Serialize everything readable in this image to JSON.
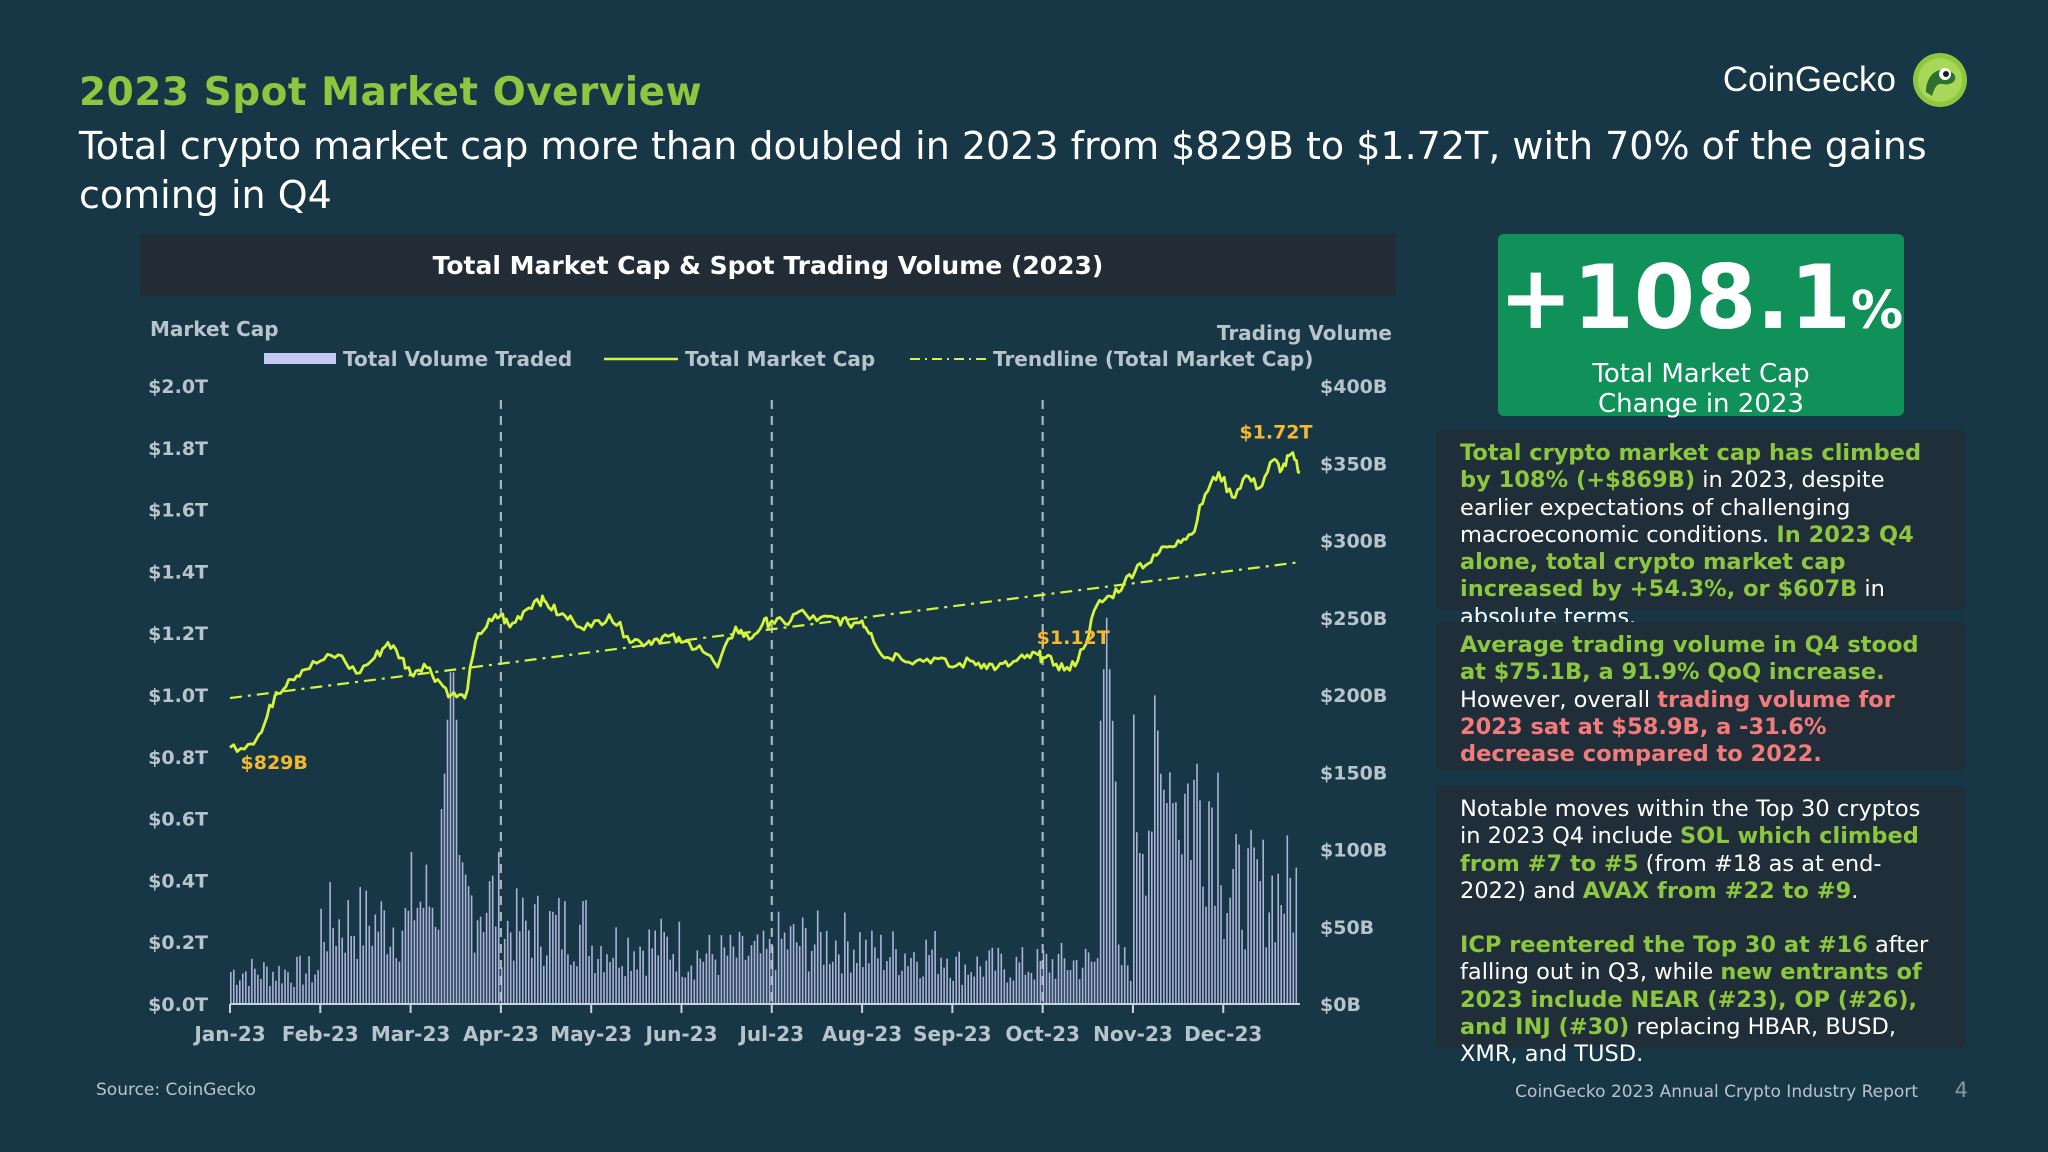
{
  "header": {
    "title": "2023 Spot Market Overview",
    "subtitle": "Total crypto market cap more than doubled in 2023 from $829B to $1.72T, with 70% of the gains coming in Q4"
  },
  "brand": {
    "name": "CoinGecko",
    "logo_icon": "gecko-logo-icon"
  },
  "chart_data": {
    "type": "bar+line",
    "title": "Total Market Cap & Spot Trading Volume (2023)",
    "y_left_label": "Market Cap",
    "y_right_label": "Trading Volume",
    "y_left_ticks": [
      "$2.0T",
      "$1.8T",
      "$1.6T",
      "$1.4T",
      "$1.2T",
      "$1.0T",
      "$0.8T",
      "$0.6T",
      "$0.4T",
      "$0.2T",
      "$0.0T"
    ],
    "y_right_ticks": [
      "$400B",
      "$350B",
      "$300B",
      "$250B",
      "$200B",
      "$150B",
      "$100B",
      "$50B",
      "$0B"
    ],
    "y_left_range_T": [
      0,
      2.0
    ],
    "y_right_range_B": [
      0,
      400
    ],
    "x_ticks": [
      "Jan-23",
      "Feb-23",
      "Mar-23",
      "Apr-23",
      "May-23",
      "Jun-23",
      "Jul-23",
      "Aug-23",
      "Sep-23",
      "Oct-23",
      "Nov-23",
      "Dec-23"
    ],
    "quarter_boundaries": [
      "Apr-23",
      "Jul-23",
      "Oct-23"
    ],
    "legend": {
      "volume": "Total Volume Traded",
      "market_cap": "Total Market Cap",
      "trendline": "Trendline (Total Market Cap)"
    },
    "annotations": [
      {
        "label": "$829B",
        "month_index": 0.05,
        "value_T": 0.829
      },
      {
        "label": "$1.12T",
        "month_index": 9.0,
        "value_T": 1.12
      },
      {
        "label": "$1.72T",
        "month_index": 11.6,
        "value_T": 1.72
      }
    ],
    "market_cap_T": {
      "x_month_index": [
        0,
        0.2,
        0.35,
        0.5,
        0.65,
        0.8,
        1.0,
        1.2,
        1.4,
        1.6,
        1.75,
        1.9,
        2.0,
        2.15,
        2.3,
        2.45,
        2.6,
        2.75,
        2.9,
        3.0,
        3.1,
        3.25,
        3.4,
        3.5,
        3.65,
        3.8,
        4.0,
        4.2,
        4.4,
        4.55,
        4.7,
        4.85,
        5.0,
        5.2,
        5.4,
        5.6,
        5.75,
        5.9,
        6.0,
        6.15,
        6.3,
        6.5,
        6.7,
        6.85,
        7.0,
        7.1,
        7.25,
        7.4,
        7.6,
        7.8,
        8.0,
        8.2,
        8.35,
        8.5,
        8.65,
        8.8,
        8.95,
        9.0,
        9.15,
        9.3,
        9.45,
        9.6,
        9.75,
        9.9,
        10.05,
        10.2,
        10.35,
        10.5,
        10.65,
        10.8,
        10.95,
        11.1,
        11.25,
        11.4,
        11.55,
        11.65,
        11.75,
        11.85
      ],
      "values": [
        0.83,
        0.84,
        0.88,
        1.0,
        1.05,
        1.08,
        1.11,
        1.13,
        1.07,
        1.12,
        1.17,
        1.12,
        1.07,
        1.1,
        1.05,
        1.0,
        0.99,
        1.2,
        1.24,
        1.26,
        1.22,
        1.27,
        1.31,
        1.3,
        1.26,
        1.24,
        1.22,
        1.26,
        1.19,
        1.17,
        1.18,
        1.19,
        1.17,
        1.16,
        1.09,
        1.22,
        1.18,
        1.23,
        1.24,
        1.23,
        1.27,
        1.24,
        1.25,
        1.23,
        1.24,
        1.2,
        1.12,
        1.13,
        1.11,
        1.12,
        1.09,
        1.11,
        1.1,
        1.09,
        1.1,
        1.12,
        1.13,
        1.12,
        1.1,
        1.08,
        1.15,
        1.29,
        1.32,
        1.36,
        1.42,
        1.43,
        1.48,
        1.5,
        1.52,
        1.65,
        1.72,
        1.64,
        1.71,
        1.67,
        1.76,
        1.73,
        1.78,
        1.72
      ]
    },
    "trendline_T": {
      "start": 0.99,
      "end": 1.43
    },
    "volume_B": {
      "monthly_typical": [
        22,
        55,
        70,
        52,
        40,
        33,
        42,
        35,
        26,
        28,
        140,
        78
      ],
      "peaks": [
        {
          "month_index": 2.4,
          "value": 172
        },
        {
          "month_index": 2.45,
          "value": 230
        },
        {
          "month_index": 9.7,
          "value": 250
        },
        {
          "month_index": 9.75,
          "value": 180
        },
        {
          "month_index": 10.4,
          "value": 150
        }
      ]
    }
  },
  "kpi": {
    "value": "+108.1",
    "unit": "%",
    "label_line1": "Total Market Cap",
    "label_line2": "Change in 2023"
  },
  "panels": {
    "p1": {
      "a": "Total crypto market cap has climbed by 108% (+$869B)",
      "b": " in 2023, despite earlier expectations of challenging macroeconomic conditions. ",
      "c": "In 2023 Q4 alone, total crypto market cap increased by +54.3%, or $607B",
      "d": " in absolute terms."
    },
    "p2": {
      "a": "Average trading volume in Q4 stood at $75.1B, a 91.9% QoQ increase.",
      "b": " However, overall ",
      "c": "trading volume for 2023 sat at $58.9B, a -31.6% decrease compared to 2022."
    },
    "p3": {
      "a": "Notable moves within the Top 30 cryptos in 2023 Q4 include ",
      "b": "SOL which climbed from #7 to #5",
      "c": " (from #18 as at end-2022) and ",
      "d": "AVAX from #22 to #9",
      "e": ".",
      "f": "ICP reentered the Top 30 at #16",
      "g": " after falling out in Q3, while ",
      "h": "new entrants of 2023 include NEAR (#23), OP (#26), and INJ (#30)",
      "i": " replacing HBAR, BUSD, XMR, and TUSD."
    }
  },
  "footer": {
    "source": "Source: CoinGecko",
    "report": "CoinGecko 2023 Annual Crypto Industry Report",
    "page": "4"
  },
  "colors": {
    "background": "#183746",
    "title_green": "#8dc63f",
    "line": "#d4f53d",
    "bars": "#c4c8f2",
    "annotation": "#f5b82e",
    "kpi_bg": "#0f9159",
    "red": "#f47b7b"
  }
}
